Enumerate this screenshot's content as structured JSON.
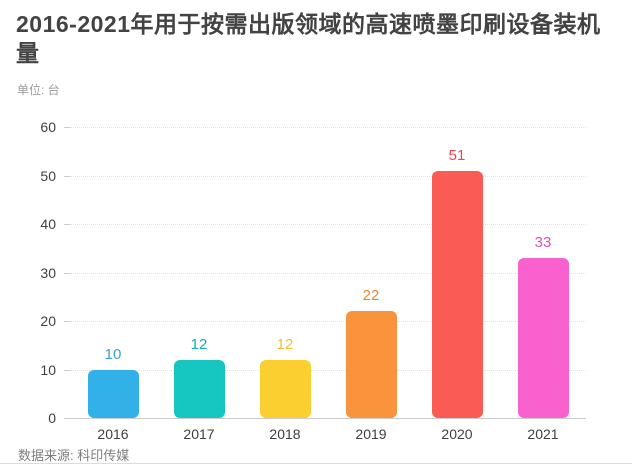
{
  "header": {
    "title": "2016-2021年用于按需出版领域的高速喷墨印刷设备装机量",
    "unit_label": "单位: 台"
  },
  "chart_data": {
    "type": "bar",
    "title": "2016-2021年用于按需出版领域的高速喷墨印刷设备装机量",
    "unit": "台",
    "categories": [
      "2016",
      "2017",
      "2018",
      "2019",
      "2020",
      "2021"
    ],
    "values": [
      10,
      12,
      12,
      22,
      51,
      33
    ],
    "bar_colors": [
      "#32b1e9",
      "#15c6c1",
      "#fccf31",
      "#f9933c",
      "#fa5b55",
      "#f961ce"
    ],
    "value_label_colors": [
      "#35a3d9",
      "#0fb0ae",
      "#f0bd2e",
      "#e98634",
      "#e44a50",
      "#d952bd"
    ],
    "xlabel": "",
    "ylabel": "",
    "ylim": [
      0,
      60
    ],
    "yticks": [
      0,
      10,
      20,
      30,
      40,
      50,
      60
    ],
    "grid": "horizontal-dotted",
    "legend": "none",
    "axis_color": "#cccccc",
    "grid_color": "#e3e3e3",
    "tick_text_color": "#3f3f3f"
  },
  "footer": {
    "source": "数据来源: 科印传媒"
  }
}
